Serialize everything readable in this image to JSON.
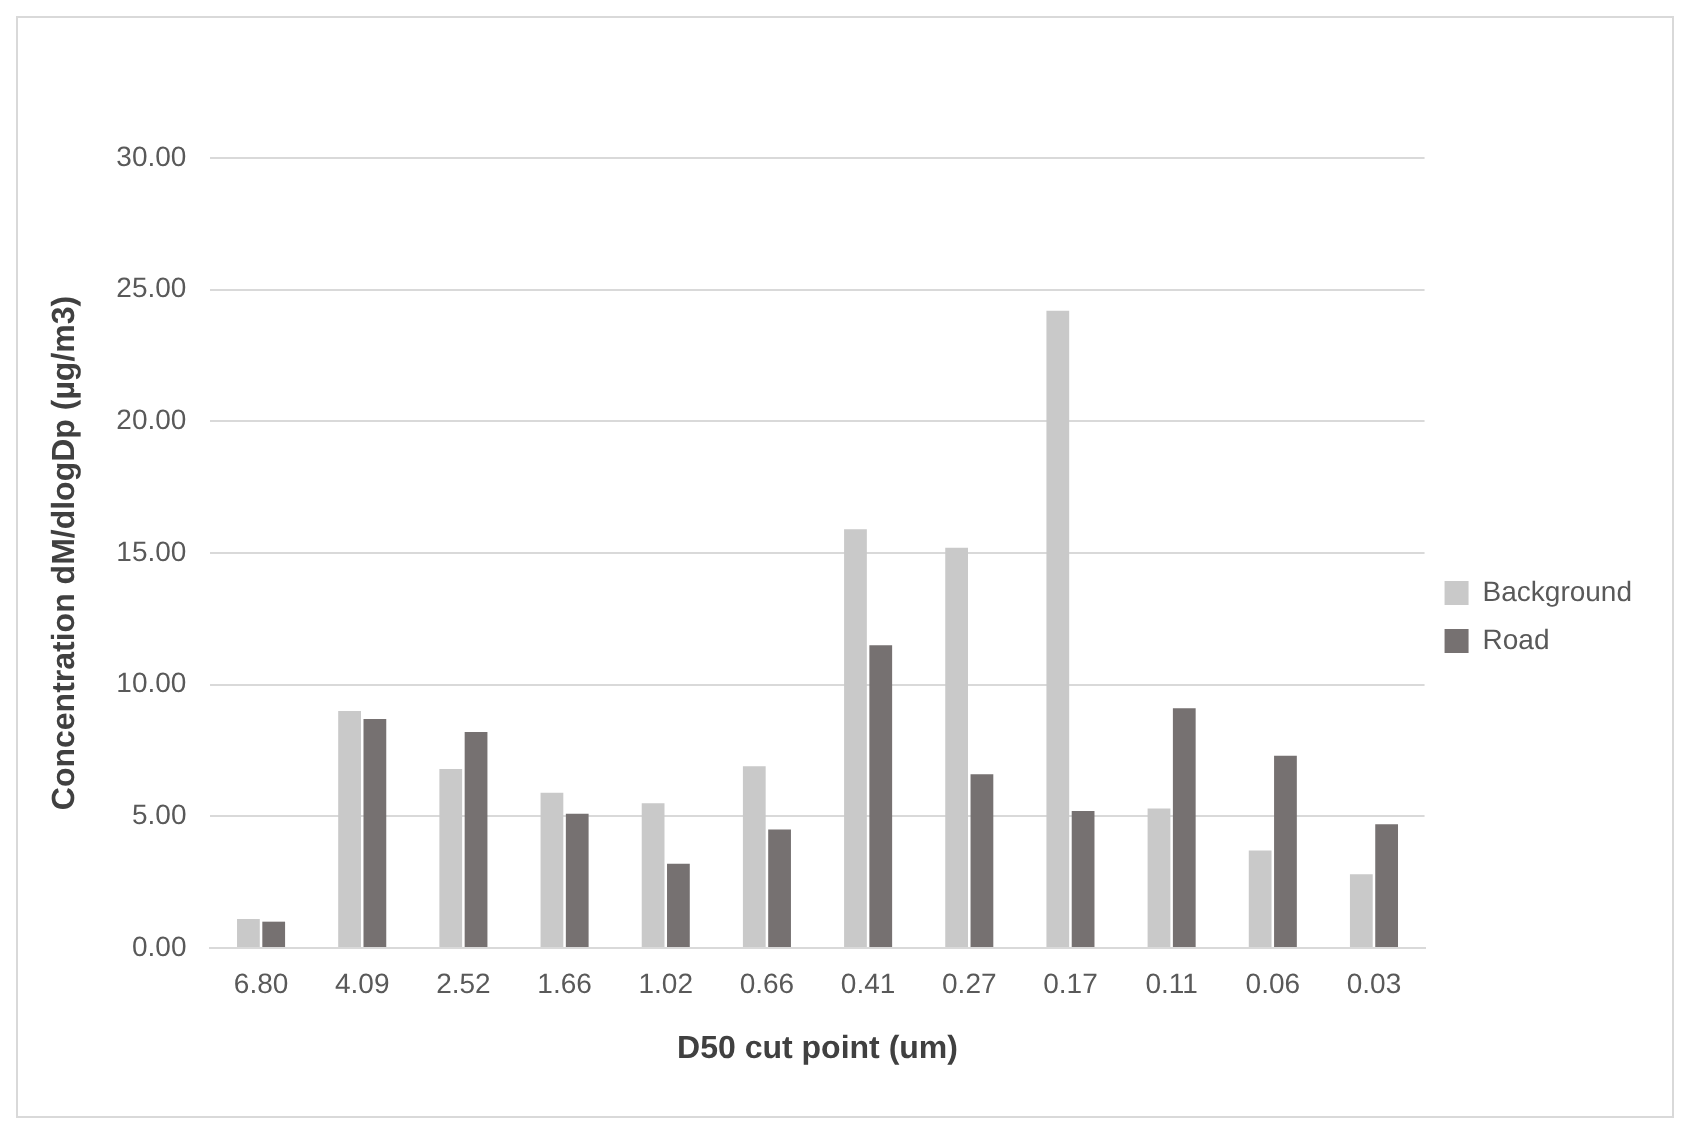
{
  "chart_data": {
    "type": "bar",
    "xlabel": "D50 cut point (um)",
    "ylabel": "Concentration dM/dlogDp (µg/m3)",
    "categories": [
      "6.80",
      "4.09",
      "2.52",
      "1.66",
      "1.02",
      "0.66",
      "0.41",
      "0.27",
      "0.17",
      "0.11",
      "0.06",
      "0.03"
    ],
    "series": [
      {
        "name": "Background",
        "color": "#c9c9c9",
        "values": [
          1.1,
          9.0,
          6.8,
          5.9,
          5.5,
          6.9,
          15.9,
          15.2,
          24.2,
          5.3,
          3.7,
          2.8
        ]
      },
      {
        "name": "Road",
        "color": "#767171",
        "values": [
          1.0,
          8.7,
          8.2,
          5.1,
          3.2,
          4.5,
          11.5,
          6.6,
          5.2,
          9.1,
          7.3,
          4.7
        ]
      }
    ],
    "ylim": [
      0,
      30
    ],
    "yticks": [
      {
        "value": 0,
        "label": "0.00"
      },
      {
        "value": 5,
        "label": "5.00"
      },
      {
        "value": 10,
        "label": "10.00"
      },
      {
        "value": 15,
        "label": "15.00"
      },
      {
        "value": 20,
        "label": "20.00"
      },
      {
        "value": 25,
        "label": "25.00"
      },
      {
        "value": 30,
        "label": "30.00"
      }
    ],
    "grid": "y",
    "legend": "right"
  }
}
